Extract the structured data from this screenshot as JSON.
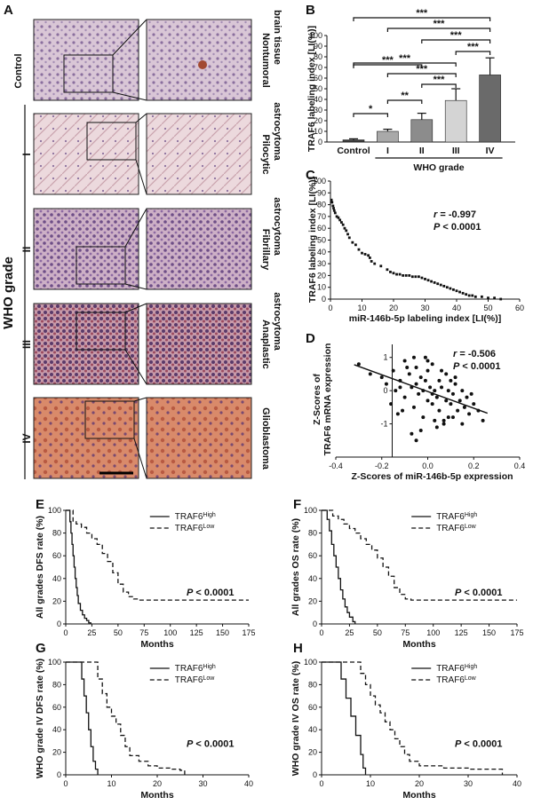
{
  "panels": {
    "A": "A",
    "B": "B",
    "C": "C",
    "D": "D",
    "E": "E",
    "F": "F",
    "G": "G",
    "H": "H"
  },
  "panel_a": {
    "control_label": "Control",
    "who_grade_label": "WHO grade",
    "rows": [
      {
        "grade": "",
        "tissue_line1": "Nontumoral",
        "tissue_line2": "brain tissue"
      },
      {
        "grade": "I",
        "tissue_line1": "Pilocytic",
        "tissue_line2": "astrocytoma"
      },
      {
        "grade": "II",
        "tissue_line1": "Fibrillary",
        "tissue_line2": "astrocytoma"
      },
      {
        "grade": "III",
        "tissue_line1": "Anaplastic",
        "tissue_line2": "astrocytoma"
      },
      {
        "grade": "IV",
        "tissue_line1": "Glioblastoma",
        "tissue_line2": ""
      }
    ]
  },
  "chart_data": [
    {
      "panel": "B",
      "type": "bar",
      "categories": [
        "Control",
        "I",
        "II",
        "III",
        "IV"
      ],
      "values": [
        2,
        10,
        21,
        39,
        63
      ],
      "errors": [
        1,
        2,
        6,
        11,
        16
      ],
      "colors": [
        "#3a3a3a",
        "#a9a9a9",
        "#8c8c8c",
        "#d4d4d4",
        "#6a6a6a"
      ],
      "ylabel": "TRAF6 labeling index [LI(%)]",
      "xgroup_label": "WHO grade",
      "ylim": [
        0,
        100
      ],
      "yticks": [
        0,
        10,
        20,
        30,
        40,
        50,
        60,
        70,
        80,
        90,
        100
      ],
      "significance": [
        {
          "from": 0,
          "to": 1,
          "label": "*"
        },
        {
          "from": 1,
          "to": 2,
          "label": "**"
        },
        {
          "from": 0,
          "to": 2,
          "label": "***"
        },
        {
          "from": 2,
          "to": 3,
          "label": "***"
        },
        {
          "from": 1,
          "to": 3,
          "label": "***"
        },
        {
          "from": 0,
          "to": 3,
          "label": "***"
        },
        {
          "from": 3,
          "to": 4,
          "label": "***"
        },
        {
          "from": 2,
          "to": 4,
          "label": "***"
        },
        {
          "from": 1,
          "to": 4,
          "label": "***"
        },
        {
          "from": 0,
          "to": 4,
          "label": "***"
        }
      ]
    },
    {
      "panel": "C",
      "type": "scatter",
      "xlabel": "miR-146b-5p labeling index [LI(%)]",
      "ylabel": "TRAF6 labeling index [LI(%)]",
      "xlim": [
        0,
        60
      ],
      "ylim": [
        0,
        100
      ],
      "xticks": [
        0,
        10,
        20,
        30,
        40,
        50,
        60
      ],
      "yticks": [
        0,
        10,
        20,
        30,
        40,
        50,
        60,
        70,
        80,
        90,
        100
      ],
      "stat_r_label": "r",
      "stat_r": " = -0.997",
      "stat_p_label": "P",
      "stat_p": " < 0.0001",
      "x": [
        0.3,
        0.5,
        0.8,
        1,
        1.2,
        1.5,
        2,
        2.5,
        3,
        3.5,
        4,
        4.5,
        5,
        5.5,
        6,
        7,
        8,
        9,
        10,
        11,
        12,
        12.5,
        13,
        14,
        16,
        18,
        19,
        20,
        21,
        22,
        23,
        24,
        25,
        26,
        27,
        28,
        29,
        30,
        31,
        32,
        33,
        34,
        35,
        36,
        37,
        38,
        39,
        40,
        41,
        42,
        43,
        44,
        45,
        46,
        48,
        50,
        52,
        54
      ],
      "y": [
        84,
        82,
        79,
        77,
        75,
        73,
        70,
        69,
        67,
        65,
        63,
        60,
        58,
        55,
        52,
        48,
        46,
        42,
        39,
        38,
        37,
        35,
        32,
        30,
        28,
        25,
        23,
        22,
        21,
        21,
        20,
        20,
        20,
        19,
        19,
        19,
        18,
        17,
        16,
        15,
        14,
        13,
        12,
        11,
        10,
        9,
        8,
        7,
        6,
        5,
        4,
        3,
        3,
        2,
        2,
        1,
        1,
        0
      ]
    },
    {
      "panel": "D",
      "type": "scatter",
      "xlabel": "Z-Scores of miR-146b-5p expression",
      "ylabel_line1": "Z-Scores of",
      "ylabel_line2": "TRAF6 mRNA expression",
      "xlim": [
        -0.4,
        0.4
      ],
      "ylim": [
        -2,
        1.5
      ],
      "xticks": [
        -0.4,
        -0.2,
        0.0,
        0.2,
        0.4
      ],
      "yticks": [
        -1,
        0,
        1
      ],
      "stat_r_label": "r",
      "stat_r": " = -0.506",
      "stat_p_label": "P",
      "stat_p": " < 0.0001",
      "fit_line": {
        "x": [
          -0.32,
          0.26
        ],
        "y": [
          0.78,
          -0.68
        ]
      },
      "x": [
        -0.3,
        -0.25,
        -0.2,
        -0.18,
        -0.15,
        -0.14,
        -0.12,
        -0.1,
        -0.1,
        -0.08,
        -0.07,
        -0.06,
        -0.05,
        -0.05,
        -0.04,
        -0.03,
        -0.02,
        -0.02,
        -0.01,
        0.0,
        0.0,
        0.01,
        0.02,
        0.02,
        0.03,
        0.04,
        0.05,
        0.05,
        0.06,
        0.07,
        0.08,
        0.08,
        0.09,
        0.1,
        0.11,
        0.12,
        0.13,
        0.14,
        0.15,
        0.16,
        0.17,
        0.18,
        0.2,
        0.22,
        0.24,
        -0.16,
        -0.11,
        -0.09,
        -0.06,
        -0.03,
        0.0,
        0.03,
        0.06,
        0.09,
        0.12,
        0.15,
        -0.13,
        -0.07,
        -0.01,
        0.04,
        0.1,
        0.19,
        -0.05,
        0.02,
        0.07,
        -0.12,
        0.11
      ],
      "y": [
        0.8,
        0.5,
        0.4,
        0.2,
        0.6,
        0.0,
        0.3,
        0.9,
        -0.2,
        0.5,
        0.1,
        -0.5,
        0.7,
        0.2,
        -0.1,
        0.4,
        0.0,
        -0.8,
        0.3,
        0.6,
        -0.3,
        0.1,
        -0.4,
        0.8,
        0.0,
        -0.2,
        0.3,
        -0.6,
        0.1,
        -1.0,
        -0.3,
        0.5,
        0.0,
        -0.4,
        -0.1,
        0.2,
        -0.6,
        -0.3,
        0.0,
        -0.5,
        -0.2,
        -0.7,
        -0.4,
        -0.6,
        -0.9,
        -0.4,
        -0.6,
        0.7,
        1.0,
        -1.2,
        0.9,
        -0.9,
        0.6,
        -0.8,
        0.4,
        -1.0,
        -0.7,
        -1.3,
        1.0,
        -1.1,
        0.3,
        -0.1,
        -1.5,
        -0.1,
        -0.9,
        0.1,
        -0.8
      ]
    },
    {
      "panel": "E",
      "type": "line",
      "subtype": "kaplan-meier",
      "ylabel": "All grades DFS rate (%)",
      "xlabel": "Months",
      "xlim": [
        0,
        175
      ],
      "ylim": [
        0,
        100
      ],
      "xticks": [
        0,
        25,
        50,
        75,
        100,
        125,
        150,
        175
      ],
      "yticks": [
        0,
        20,
        40,
        60,
        80,
        100
      ],
      "pvalue_label": "P",
      "pvalue": " < 0.0001",
      "series": [
        {
          "name": "TRAF6",
          "sup": "High",
          "style": "solid",
          "x": [
            0,
            3,
            4,
            5,
            6,
            7,
            8,
            9,
            10,
            11,
            12,
            14,
            16,
            18,
            20,
            22,
            24
          ],
          "y": [
            100,
            100,
            90,
            80,
            70,
            60,
            50,
            40,
            32,
            25,
            18,
            12,
            8,
            5,
            3,
            1,
            0
          ]
        },
        {
          "name": "TRAF6",
          "sup": "Low",
          "style": "dashed",
          "x": [
            0,
            5,
            7,
            10,
            15,
            20,
            25,
            30,
            35,
            40,
            45,
            50,
            55,
            60,
            65,
            70,
            175
          ],
          "y": [
            100,
            100,
            90,
            88,
            85,
            80,
            75,
            70,
            62,
            55,
            45,
            35,
            28,
            24,
            22,
            21,
            21
          ]
        }
      ]
    },
    {
      "panel": "F",
      "type": "line",
      "subtype": "kaplan-meier",
      "ylabel": "All grades OS rate (%)",
      "xlabel": "Months",
      "xlim": [
        0,
        175
      ],
      "ylim": [
        0,
        100
      ],
      "xticks": [
        0,
        25,
        50,
        75,
        100,
        125,
        150,
        175
      ],
      "yticks": [
        0,
        20,
        40,
        60,
        80,
        100
      ],
      "pvalue_label": "P",
      "pvalue": " < 0.0001",
      "series": [
        {
          "name": "TRAF6",
          "sup": "High",
          "style": "solid",
          "x": [
            0,
            3,
            5,
            7,
            9,
            11,
            13,
            15,
            17,
            19,
            21,
            23,
            25,
            28,
            30
          ],
          "y": [
            100,
            100,
            92,
            82,
            70,
            60,
            50,
            40,
            30,
            22,
            15,
            10,
            6,
            2,
            0
          ]
        },
        {
          "name": "TRAF6",
          "sup": "Low",
          "style": "dashed",
          "x": [
            0,
            8,
            10,
            15,
            20,
            25,
            30,
            35,
            40,
            45,
            50,
            55,
            60,
            65,
            70,
            75,
            80,
            175
          ],
          "y": [
            100,
            100,
            95,
            92,
            88,
            84,
            80,
            75,
            70,
            65,
            58,
            50,
            42,
            32,
            26,
            22,
            21,
            21
          ]
        }
      ]
    },
    {
      "panel": "G",
      "type": "line",
      "subtype": "kaplan-meier",
      "ylabel": "WHO grade IV DFS rate (%)",
      "xlabel": "Months",
      "xlim": [
        0,
        40
      ],
      "ylim": [
        0,
        100
      ],
      "xticks": [
        0,
        10,
        20,
        30,
        40
      ],
      "yticks": [
        0,
        20,
        40,
        60,
        80,
        100
      ],
      "pvalue_label": "P",
      "pvalue": " < 0.0001",
      "series": [
        {
          "name": "TRAF6",
          "sup": "High",
          "style": "solid",
          "x": [
            0,
            3,
            3.5,
            4,
            4.5,
            5,
            5.5,
            6,
            6.5,
            7
          ],
          "y": [
            100,
            100,
            85,
            70,
            55,
            40,
            25,
            12,
            5,
            0
          ]
        },
        {
          "name": "TRAF6",
          "sup": "Low",
          "style": "dashed",
          "x": [
            0,
            6,
            7,
            8,
            9,
            10,
            11,
            12,
            13,
            14,
            16,
            18,
            20,
            23,
            25,
            26
          ],
          "y": [
            100,
            100,
            85,
            72,
            60,
            52,
            45,
            35,
            25,
            17,
            12,
            8,
            6,
            5,
            4,
            0
          ]
        }
      ]
    },
    {
      "panel": "H",
      "type": "line",
      "subtype": "kaplan-meier",
      "ylabel": "WHO grade IV OS rate (%)",
      "xlabel": "Months",
      "xlim": [
        0,
        40
      ],
      "ylim": [
        0,
        100
      ],
      "xticks": [
        0,
        10,
        20,
        30,
        40
      ],
      "yticks": [
        0,
        20,
        40,
        60,
        80,
        100
      ],
      "pvalue_label": "P",
      "pvalue": " < 0.0001",
      "series": [
        {
          "name": "TRAF6",
          "sup": "High",
          "style": "solid",
          "x": [
            0,
            3,
            4,
            5,
            6,
            7,
            8,
            8.5,
            9
          ],
          "y": [
            100,
            100,
            85,
            68,
            52,
            35,
            18,
            6,
            0
          ]
        },
        {
          "name": "TRAF6",
          "sup": "Low",
          "style": "dashed",
          "x": [
            0,
            7,
            8,
            9,
            10,
            11,
            12,
            13,
            14,
            15,
            16,
            17,
            18,
            20,
            25,
            30,
            35,
            37
          ],
          "y": [
            100,
            100,
            90,
            80,
            70,
            62,
            55,
            47,
            40,
            32,
            25,
            18,
            12,
            8,
            6,
            5,
            5,
            0
          ]
        }
      ]
    }
  ]
}
